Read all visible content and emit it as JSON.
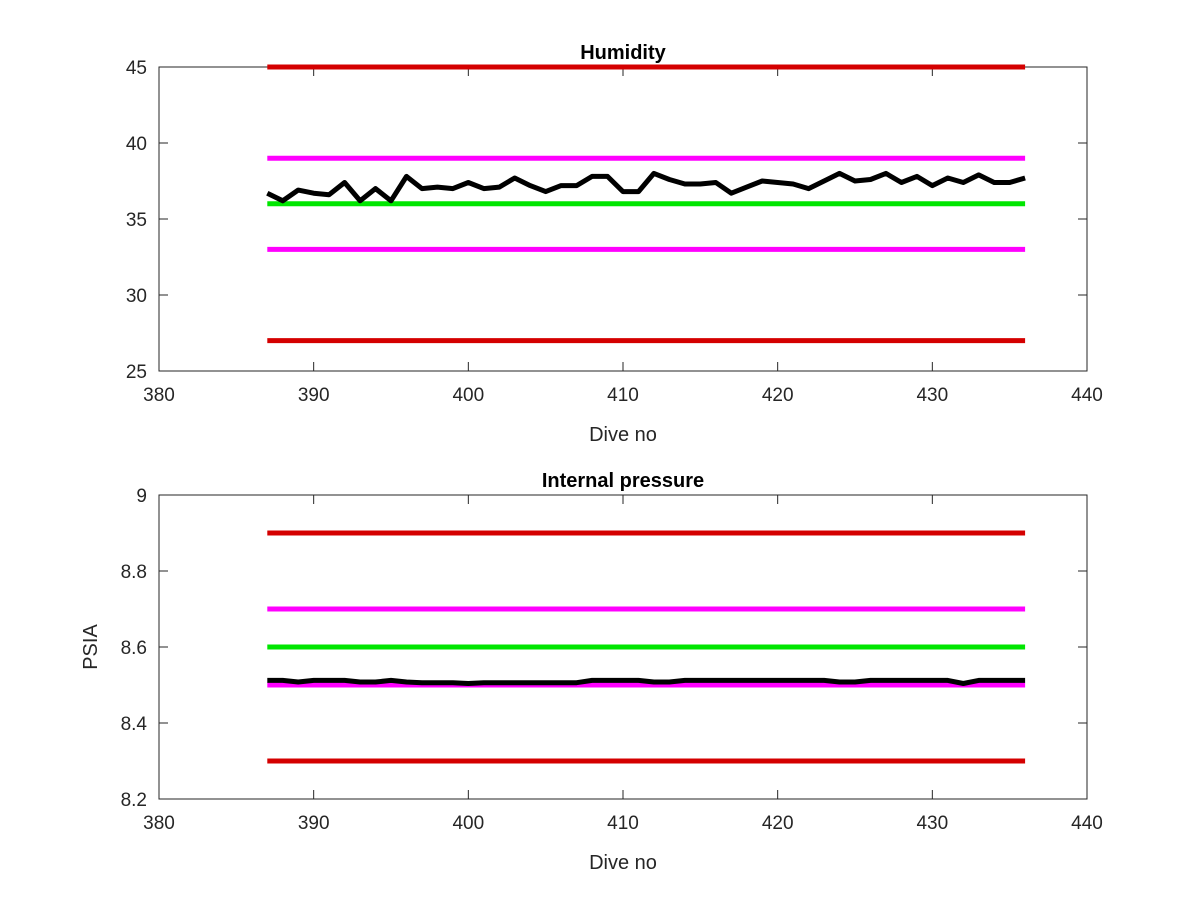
{
  "chart_data": [
    {
      "type": "line",
      "title": "Humidity",
      "xlabel": "Dive no",
      "ylabel": "",
      "xlim": [
        380,
        440
      ],
      "ylim": [
        25,
        45
      ],
      "xticks": [
        "380",
        "390",
        "400",
        "410",
        "420",
        "430",
        "440"
      ],
      "yticks": [
        "25",
        "30",
        "35",
        "40",
        "45"
      ],
      "grid": false,
      "series": [
        {
          "color": "#d40000",
          "style": "flat",
          "x": [
            387,
            436
          ],
          "values": [
            45,
            45
          ]
        },
        {
          "color": "#ff00ff",
          "style": "flat",
          "x": [
            387,
            436
          ],
          "values": [
            39,
            39
          ]
        },
        {
          "color": "#00e600",
          "style": "flat",
          "x": [
            387,
            436
          ],
          "values": [
            36,
            36
          ]
        },
        {
          "color": "#ff00ff",
          "style": "flat",
          "x": [
            387,
            436
          ],
          "values": [
            33,
            33
          ]
        },
        {
          "color": "#d40000",
          "style": "flat",
          "x": [
            387,
            436
          ],
          "values": [
            27,
            27
          ]
        },
        {
          "color": "#000000",
          "style": "data",
          "x": [
            387,
            388,
            389,
            390,
            391,
            392,
            393,
            394,
            395,
            396,
            397,
            398,
            399,
            400,
            401,
            402,
            403,
            404,
            405,
            406,
            407,
            408,
            409,
            410,
            411,
            412,
            413,
            414,
            415,
            416,
            417,
            418,
            419,
            420,
            421,
            422,
            423,
            424,
            425,
            426,
            427,
            428,
            429,
            430,
            431,
            432,
            433,
            434,
            435,
            436
          ],
          "values": [
            36.7,
            36.2,
            36.9,
            36.7,
            36.6,
            37.4,
            36.2,
            37.0,
            36.2,
            37.8,
            37.0,
            37.1,
            37.0,
            37.4,
            37.0,
            37.1,
            37.7,
            37.2,
            36.8,
            37.2,
            37.2,
            37.8,
            37.8,
            36.8,
            36.8,
            38.0,
            37.6,
            37.3,
            37.3,
            37.4,
            36.7,
            37.1,
            37.5,
            37.4,
            37.3,
            37.0,
            37.5,
            38.0,
            37.5,
            37.6,
            38.0,
            37.4,
            37.8,
            37.2,
            37.7,
            37.4,
            37.9,
            37.4,
            37.4,
            37.7
          ]
        }
      ]
    },
    {
      "type": "line",
      "title": "Internal pressure",
      "xlabel": "Dive no",
      "ylabel": "PSIA",
      "xlim": [
        380,
        440
      ],
      "ylim": [
        8.2,
        9.0
      ],
      "xticks": [
        "380",
        "390",
        "400",
        "410",
        "420",
        "430",
        "440"
      ],
      "yticks": [
        "8.2",
        "8.4",
        "8.6",
        "8.8",
        "9"
      ],
      "grid": false,
      "series": [
        {
          "color": "#d40000",
          "style": "flat",
          "x": [
            387,
            436
          ],
          "values": [
            8.9,
            8.9
          ]
        },
        {
          "color": "#ff00ff",
          "style": "flat",
          "x": [
            387,
            436
          ],
          "values": [
            8.7,
            8.7
          ]
        },
        {
          "color": "#00e600",
          "style": "flat",
          "x": [
            387,
            436
          ],
          "values": [
            8.6,
            8.6
          ]
        },
        {
          "color": "#ff00ff",
          "style": "flat",
          "x": [
            387,
            436
          ],
          "values": [
            8.5,
            8.5
          ]
        },
        {
          "color": "#d40000",
          "style": "flat",
          "x": [
            387,
            436
          ],
          "values": [
            8.3,
            8.3
          ]
        },
        {
          "color": "#000000",
          "style": "data",
          "x": [
            387,
            388,
            389,
            390,
            391,
            392,
            393,
            394,
            395,
            396,
            397,
            398,
            399,
            400,
            401,
            402,
            403,
            404,
            405,
            406,
            407,
            408,
            409,
            410,
            411,
            412,
            413,
            414,
            415,
            416,
            417,
            418,
            419,
            420,
            421,
            422,
            423,
            424,
            425,
            426,
            427,
            428,
            429,
            430,
            431,
            432,
            433,
            434,
            435,
            436
          ],
          "values": [
            8.512,
            8.512,
            8.508,
            8.512,
            8.512,
            8.512,
            8.508,
            8.508,
            8.512,
            8.508,
            8.506,
            8.506,
            8.506,
            8.504,
            8.506,
            8.506,
            8.506,
            8.506,
            8.506,
            8.506,
            8.506,
            8.512,
            8.512,
            8.512,
            8.512,
            8.508,
            8.508,
            8.512,
            8.512,
            8.512,
            8.512,
            8.512,
            8.512,
            8.512,
            8.512,
            8.512,
            8.512,
            8.508,
            8.508,
            8.512,
            8.512,
            8.512,
            8.512,
            8.512,
            8.512,
            8.504,
            8.512,
            8.512,
            8.512,
            8.512
          ]
        }
      ]
    }
  ]
}
